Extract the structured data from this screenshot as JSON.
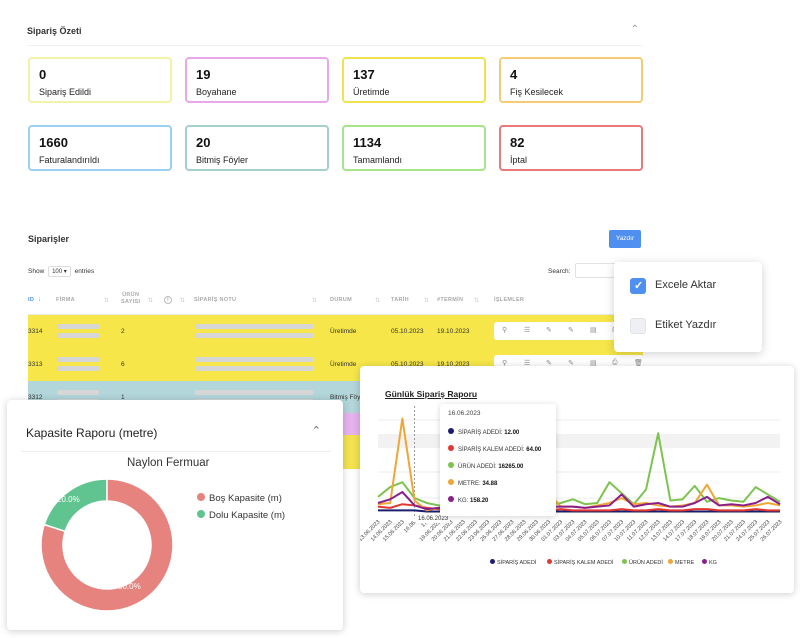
{
  "summary": {
    "title": "Sipariş Özeti",
    "cards": [
      {
        "value": "0",
        "label": "Sipariş Edildi",
        "color": "#f6f1a8"
      },
      {
        "value": "19",
        "label": "Boyahane",
        "color": "#e9a8ec"
      },
      {
        "value": "137",
        "label": "Üretimde",
        "color": "#f0e24e"
      },
      {
        "value": "4",
        "label": "Fiş Kesilecek",
        "color": "#f5cb76"
      },
      {
        "value": "1660",
        "label": "Faturalandırıldı",
        "color": "#9ad0f0"
      },
      {
        "value": "20",
        "label": "Bitmiş Föyler",
        "color": "#a6cfd1"
      },
      {
        "value": "1134",
        "label": "Tamamlandı",
        "color": "#a8e48c"
      },
      {
        "value": "82",
        "label": "İptal",
        "color": "#ea7a7a"
      }
    ]
  },
  "orders": {
    "title": "Siparişler",
    "print_label": "Yazdır",
    "show_label": "Show",
    "show_value": "100",
    "entries_label": "entries",
    "search_label": "Search:",
    "columns": [
      "ID",
      "FİRMA",
      "ÜRÜN\nSAYISI",
      "SİPARİŞ NOTU",
      "DURUM",
      "TARİH",
      "#TERMİN",
      "İŞLEMLER"
    ],
    "rows": [
      {
        "id": "3314",
        "count": "2",
        "status": "Üretimde",
        "date": "05.10.2023",
        "term": "19.10.2023",
        "bg": "#f6e64a"
      },
      {
        "id": "3313",
        "count": "6",
        "status": "Üretimde",
        "date": "05.10.2023",
        "term": "19.10.2023",
        "bg": "#f6e64a"
      },
      {
        "id": "3312",
        "count": "1",
        "status": "Bitmiş Föy",
        "date": "",
        "term": "",
        "bg": "#b2d6da"
      }
    ]
  },
  "dropdown": {
    "items": [
      {
        "label": "Excele Aktar",
        "checked": true
      },
      {
        "label": "Etiket Yazdır",
        "checked": false
      }
    ]
  },
  "capacity": {
    "title": "Kapasite Raporu (metre)",
    "chart_data": {
      "type": "pie",
      "title": "Naylon Fermuar",
      "labels": [
        "Boş Kapasite (m)",
        "Dolu Kapasite (m)"
      ],
      "values": [
        80.0,
        20.0
      ],
      "value_labels": [
        "80.0%",
        "20.0%"
      ],
      "colors": [
        "#e6837e",
        "#5fc48f"
      ],
      "legend": "right"
    }
  },
  "daily": {
    "title": "Günlük Sipariş Raporu",
    "tooltip": {
      "date": "16.06.2023",
      "lines": [
        {
          "label": "SİPARİŞ ADEDİ:",
          "value": "12.00",
          "color": "#1b1e6e"
        },
        {
          "label": "SİPARİŞ KALEM ADEDİ:",
          "value": "64.00",
          "color": "#e2382f"
        },
        {
          "label": "ÜRÜN ADEDİ:",
          "value": "16265.00",
          "color": "#7cc34f"
        },
        {
          "label": "METRE:",
          "value": "34.88",
          "color": "#f0a635"
        },
        {
          "label": "KG:",
          "value": "158.20",
          "color": "#8a1f8a"
        }
      ]
    },
    "date_chip": "16.06.2023",
    "chart_data": {
      "type": "line",
      "title": "Günlük Sipariş Raporu",
      "x": [
        "13.06.2023",
        "14.06.2023",
        "15.06.2023",
        "16.06.2023",
        "17.06.2023",
        "19.06.2023",
        "20.06.2023",
        "21.06.2023",
        "22.06.2023",
        "23.06.2023",
        "26.06.2023",
        "27.06.2023",
        "28.06.2023",
        "29.06.2023",
        "30.06.2023",
        "01.07.2023",
        "03.07.2023",
        "04.07.2023",
        "05.07.2023",
        "06.07.2023",
        "07.07.2023",
        "10.07.2023",
        "11.07.2023",
        "12.07.2023",
        "13.07.2023",
        "14.07.2023",
        "17.07.2023",
        "18.07.2023",
        "19.07.2023",
        "20.07.2023",
        "21.07.2023",
        "24.07.2023",
        "25.07.2023",
        "26.07.2023"
      ],
      "tick_labels": [
        "13.06.2023",
        "14.06.2023",
        "15.06.2023",
        "16.06.",
        "17.",
        "19.06.2023",
        "20.06.2023",
        "21.06.2023",
        "22.06.2023",
        "23.06.2023",
        "26.06.2023",
        "27.06.2023",
        "28.06.2023",
        "29.06.2023",
        "30.06.2023",
        "01.07.2023",
        "03.07.2023",
        "04.07.2023",
        "05.07.2023",
        "06.07.2023",
        "07.07.2023",
        "10.07.2023",
        "11.07.2023",
        "12.07.2023",
        "13.07.2023",
        "14.07.2023",
        "17.07.2023",
        "18.07.2023",
        "19.07.2023",
        "20.07.2023",
        "21.07.2023",
        "24.07.2023",
        "25.07.2023",
        "26.07.2023"
      ],
      "series": [
        {
          "name": "SİPARİŞ ADEDİ",
          "color": "#1b1e6e",
          "values": [
            0.3,
            0.3,
            0.3,
            0.3,
            0.2,
            0.2,
            0.2,
            0.2,
            0.2,
            0.2,
            0.2,
            0.2,
            0.2,
            0.2,
            0.2,
            0.2,
            0.2,
            0.2,
            0.2,
            0.2,
            0.2,
            0.2,
            0.2,
            0.2,
            0.2,
            0.2,
            0.2,
            0.2,
            0.2,
            0.2,
            0.2,
            0.2,
            0.2,
            0.2
          ]
        },
        {
          "name": "SİPARİŞ KALEM ADEDİ",
          "color": "#e2382f",
          "values": [
            0.6,
            0.5,
            0.8,
            0.7,
            0.5,
            0.4,
            0.4,
            0.4,
            0.4,
            0.3,
            0.4,
            0.5,
            0.3,
            0.4,
            0.3,
            0.4,
            0.3,
            0.3,
            0.3,
            0.3,
            0.4,
            0.3,
            0.3,
            0.4,
            0.3,
            0.3,
            0.4,
            0.4,
            0.3,
            0.3,
            0.3,
            0.4,
            0.3,
            0.3
          ]
        },
        {
          "name": "ÜRÜN ADEDİ",
          "color": "#7cc34f",
          "values": [
            1.4,
            2.2,
            2.6,
            1.3,
            0.9,
            0.7,
            0.8,
            0.7,
            0.8,
            1.2,
            0.8,
            0.9,
            0.9,
            1.8,
            0.7,
            0.9,
            1.2,
            0.8,
            0.9,
            2.6,
            1.7,
            0.8,
            2.0,
            6.6,
            1.1,
            1.2,
            2.3,
            1.0,
            1.3,
            1.1,
            1.0,
            2.2,
            1.6,
            1.0
          ]
        },
        {
          "name": "METRE",
          "color": "#f0a635",
          "values": [
            0.8,
            0.9,
            7.8,
            1.1,
            0.3,
            0.5,
            0.8,
            0.6,
            0.5,
            0.5,
            0.6,
            0.8,
            0.5,
            0.5,
            1.8,
            0.6,
            0.6,
            0.5,
            0.7,
            0.9,
            1.3,
            0.8,
            0.9,
            0.7,
            0.6,
            0.7,
            0.9,
            2.4,
            0.7,
            0.7,
            0.6,
            0.7,
            0.9,
            0.7
          ]
        },
        {
          "name": "KG",
          "color": "#8a1f8a",
          "values": [
            0.9,
            1.2,
            1.8,
            0.7,
            0.4,
            0.5,
            0.6,
            0.5,
            0.5,
            0.6,
            0.6,
            0.7,
            0.5,
            0.6,
            0.6,
            0.6,
            0.6,
            0.5,
            0.6,
            0.7,
            1.6,
            0.6,
            0.8,
            0.9,
            0.6,
            0.6,
            0.9,
            1.4,
            0.7,
            0.8,
            0.7,
            0.9,
            1.4,
            0.8
          ]
        }
      ],
      "grid": true,
      "legend": "bottom"
    }
  }
}
